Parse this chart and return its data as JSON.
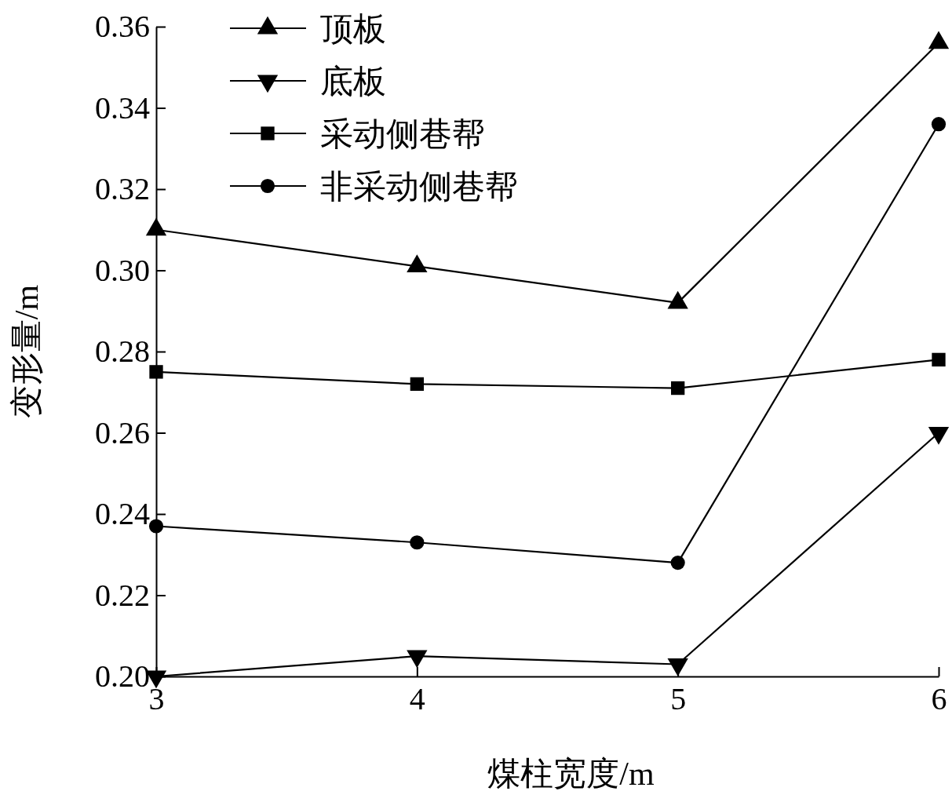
{
  "chart_data": {
    "type": "line",
    "xlabel": "煤柱宽度/m",
    "ylabel": "变形量/m",
    "x": [
      3,
      4,
      5,
      6
    ],
    "xlim": [
      3,
      6
    ],
    "xticks": [
      3,
      4,
      5,
      6
    ],
    "ylim": [
      0.2,
      0.36
    ],
    "yticks": [
      {
        "value": 0.2,
        "label": "0.20"
      },
      {
        "value": 0.22,
        "label": "0.22"
      },
      {
        "value": 0.24,
        "label": "0.24"
      },
      {
        "value": 0.26,
        "label": "0.26"
      },
      {
        "value": 0.28,
        "label": "0.28"
      },
      {
        "value": 0.3,
        "label": "0.30"
      },
      {
        "value": 0.32,
        "label": "0.32"
      },
      {
        "value": 0.34,
        "label": "0.34"
      },
      {
        "value": 0.36,
        "label": "0.36"
      }
    ],
    "grid": false,
    "legend": "top left",
    "line_style": "solid",
    "series": [
      {
        "name": "顶板",
        "color": "#000000",
        "marker": "triangle",
        "values": [
          0.31,
          0.301,
          0.292,
          0.356
        ]
      },
      {
        "name": "底板",
        "color": "#000000",
        "marker": "triangle-down",
        "values": [
          0.2,
          0.205,
          0.203,
          0.26
        ]
      },
      {
        "name": "采动侧巷帮",
        "color": "#000000",
        "marker": "square",
        "values": [
          0.275,
          0.272,
          0.271,
          0.278
        ]
      },
      {
        "name": "非采动侧巷帮",
        "color": "#000000",
        "marker": "circle",
        "values": [
          0.237,
          0.233,
          0.228,
          0.336
        ]
      }
    ]
  }
}
